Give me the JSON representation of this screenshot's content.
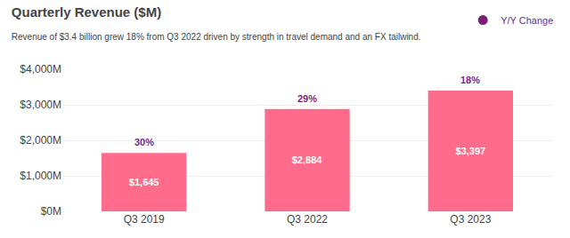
{
  "chart_data": {
    "type": "bar",
    "title": "Quarterly Revenue ($M)",
    "subtitle": "Revenue of $3.4 billion grew 18% from Q3 2022 driven by strength in travel demand and an FX tailwind.",
    "categories": [
      "Q3 2019",
      "Q3 2022",
      "Q3 2023"
    ],
    "values": [
      1645,
      2884,
      3397
    ],
    "value_labels": [
      "$1,645",
      "$2,884",
      "$3,397"
    ],
    "data_labels": true,
    "color": "#FF6B8A",
    "annotations": {
      "name": "Y/Y Change",
      "color": "#7B1F7B",
      "texts": [
        "30%",
        "29%",
        "18%"
      ]
    },
    "ylim": [
      0,
      4000
    ],
    "yticks": [
      {
        "value": 0,
        "label": "$0M"
      },
      {
        "value": 1000,
        "label": "$1,000M"
      },
      {
        "value": 2000,
        "label": "$2,000M"
      },
      {
        "value": 3000,
        "label": "$3,000M"
      },
      {
        "value": 4000,
        "label": "$4,000M"
      }
    ],
    "grid": true
  }
}
